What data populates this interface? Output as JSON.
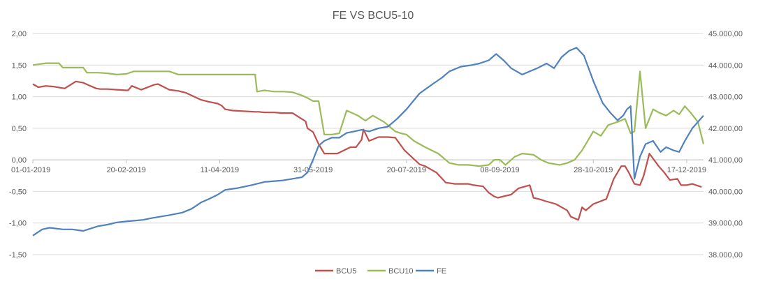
{
  "chart_data": {
    "type": "line",
    "title": "FE VS BCU5-10",
    "grid": true,
    "legend_position": "bottom",
    "x_ticks": [
      "01-01-2019",
      "20-02-2019",
      "11-04-2019",
      "31-05-2019",
      "20-07-2019",
      "08-09-2019",
      "28-10-2019",
      "17-12-2019"
    ],
    "y_left": {
      "range": [
        -1.5,
        2.0
      ],
      "ticks": [
        -1.5,
        -1.0,
        -0.5,
        0.0,
        0.5,
        1.0,
        1.5,
        2.0
      ],
      "tick_labels": [
        "-1,50",
        "-1,00",
        "-0,50",
        "0,00",
        "0,50",
        "1,00",
        "1,50",
        "2,00"
      ]
    },
    "y_right": {
      "range": [
        38000,
        45000
      ],
      "ticks": [
        38000,
        39000,
        40000,
        41000,
        42000,
        43000,
        44000,
        45000
      ],
      "tick_labels": [
        "38.000,00",
        "39.000,00",
        "40.000,00",
        "41.000,00",
        "42.000,00",
        "43.000,00",
        "44.000,00",
        "45.000,00"
      ]
    },
    "series": [
      {
        "name": "BCU5",
        "axis": "left",
        "color": "#c0504d",
        "x": [
          "01-01-2019",
          "04-01-2019",
          "08-01-2019",
          "12-01-2019",
          "18-01-2019",
          "24-01-2019",
          "28-01-2019",
          "31-01-2019",
          "04-02-2019",
          "06-02-2019",
          "10-02-2019",
          "15-02-2019",
          "20-02-2019",
          "21-02-2019",
          "23-02-2019",
          "28-02-2019",
          "01-03-2019",
          "07-03-2019",
          "09-03-2019",
          "15-03-2019",
          "20-03-2019",
          "24-03-2019",
          "01-04-2019",
          "05-04-2019",
          "10-04-2019",
          "12-04-2019",
          "14-04-2019",
          "18-04-2019",
          "30-04-2019",
          "02-05-2019",
          "05-05-2019",
          "10-05-2019",
          "15-05-2019",
          "20-05-2019",
          "27-05-2019",
          "28-05-2019",
          "31-05-2019",
          "03-06-2019",
          "06-06-2019",
          "13-06-2019",
          "20-06-2019",
          "23-06-2019",
          "26-06-2019",
          "27-06-2019",
          "30-06-2019",
          "05-07-2019",
          "10-07-2019",
          "14-07-2019",
          "19-07-2019",
          "27-07-2019",
          "30-07-2019",
          "05-08-2019",
          "10-08-2019",
          "15-08-2019",
          "22-08-2019",
          "25-08-2019",
          "30-08-2019",
          "02-09-2019",
          "05-09-2019",
          "07-09-2019",
          "11-09-2019",
          "14-09-2019",
          "18-09-2019",
          "24-09-2019",
          "26-09-2019",
          "30-09-2019",
          "02-10-2019",
          "08-10-2019",
          "14-10-2019",
          "16-10-2019",
          "20-10-2019",
          "22-10-2019",
          "24-10-2019",
          "28-10-2019",
          "04-11-2019",
          "08-11-2019",
          "12-11-2019",
          "14-11-2019",
          "16-11-2019",
          "19-11-2019",
          "22-11-2019",
          "24-11-2019",
          "27-11-2019",
          "02-12-2019",
          "05-12-2019",
          "08-12-2019",
          "12-12-2019",
          "14-12-2019",
          "17-12-2019",
          "20-12-2019",
          "22-12-2019",
          "25-12-2019"
        ],
        "values": [
          1.2,
          1.15,
          1.17,
          1.16,
          1.13,
          1.24,
          1.22,
          1.18,
          1.13,
          1.12,
          1.12,
          1.11,
          1.1,
          1.1,
          1.17,
          1.11,
          1.12,
          1.19,
          1.2,
          1.11,
          1.09,
          1.06,
          0.95,
          0.92,
          0.89,
          0.86,
          0.8,
          0.78,
          0.76,
          0.76,
          0.75,
          0.75,
          0.74,
          0.74,
          0.61,
          0.5,
          0.44,
          0.25,
          0.1,
          0.1,
          0.2,
          0.2,
          0.32,
          0.48,
          0.3,
          0.36,
          0.36,
          0.35,
          0.15,
          -0.07,
          -0.1,
          -0.2,
          -0.36,
          -0.38,
          -0.38,
          -0.4,
          -0.42,
          -0.52,
          -0.58,
          -0.6,
          -0.57,
          -0.55,
          -0.45,
          -0.4,
          -0.6,
          -0.63,
          -0.65,
          -0.7,
          -0.8,
          -0.9,
          -0.95,
          -0.75,
          -0.8,
          -0.7,
          -0.62,
          -0.3,
          -0.1,
          -0.1,
          -0.2,
          -0.38,
          -0.4,
          -0.25,
          0.1,
          -0.1,
          -0.2,
          -0.32,
          -0.3,
          -0.4,
          -0.4,
          -0.38,
          -0.4,
          -0.43
        ]
      },
      {
        "name": "BCU10",
        "axis": "left",
        "color": "#9bbb59",
        "x": [
          "01-01-2019",
          "08-01-2019",
          "15-01-2019",
          "17-01-2019",
          "28-01-2019",
          "30-01-2019",
          "05-02-2019",
          "10-02-2019",
          "15-02-2019",
          "20-02-2019",
          "24-02-2019",
          "05-03-2019",
          "15-03-2019",
          "20-03-2019",
          "01-04-2019",
          "11-04-2019",
          "20-04-2019",
          "30-04-2019",
          "01-05-2019",
          "05-05-2019",
          "10-05-2019",
          "15-05-2019",
          "20-05-2019",
          "25-05-2019",
          "28-05-2019",
          "31-05-2019",
          "03-06-2019",
          "06-06-2019",
          "10-06-2019",
          "14-06-2019",
          "18-06-2019",
          "24-06-2019",
          "28-06-2019",
          "02-07-2019",
          "08-07-2019",
          "14-07-2019",
          "17-07-2019",
          "20-07-2019",
          "24-07-2019",
          "30-07-2019",
          "06-08-2019",
          "12-08-2019",
          "17-08-2019",
          "22-08-2019",
          "28-08-2019",
          "02-09-2019",
          "05-09-2019",
          "08-09-2019",
          "11-09-2019",
          "16-09-2019",
          "20-09-2019",
          "26-09-2019",
          "30-09-2019",
          "04-10-2019",
          "10-10-2019",
          "14-10-2019",
          "18-10-2019",
          "22-10-2019",
          "25-10-2019",
          "28-10-2019",
          "01-11-2019",
          "05-11-2019",
          "10-11-2019",
          "14-11-2019",
          "17-11-2019",
          "19-11-2019",
          "22-11-2019",
          "25-11-2019",
          "29-11-2019",
          "02-12-2019",
          "06-12-2019",
          "10-12-2019",
          "13-12-2019",
          "16-12-2019",
          "19-12-2019",
          "23-12-2019",
          "26-12-2019"
        ],
        "values": [
          1.5,
          1.53,
          1.53,
          1.46,
          1.46,
          1.38,
          1.38,
          1.37,
          1.35,
          1.36,
          1.4,
          1.4,
          1.4,
          1.35,
          1.35,
          1.35,
          1.35,
          1.35,
          1.08,
          1.1,
          1.08,
          1.08,
          1.07,
          1.02,
          0.98,
          0.93,
          0.93,
          0.4,
          0.4,
          0.42,
          0.78,
          0.7,
          0.62,
          0.7,
          0.6,
          0.45,
          0.42,
          0.4,
          0.3,
          0.2,
          0.1,
          -0.05,
          -0.08,
          -0.08,
          -0.1,
          -0.08,
          0.0,
          0.0,
          -0.08,
          0.05,
          0.1,
          0.08,
          0.0,
          -0.05,
          -0.08,
          -0.05,
          0.0,
          0.15,
          0.3,
          0.45,
          0.38,
          0.55,
          0.6,
          0.65,
          0.42,
          0.45,
          1.4,
          0.5,
          0.8,
          0.75,
          0.7,
          0.78,
          0.72,
          0.85,
          0.75,
          0.6,
          0.25
        ]
      },
      {
        "name": "FE",
        "axis": "right",
        "color": "#4f81bd",
        "x": [
          "01-01-2019",
          "06-01-2019",
          "10-01-2019",
          "17-01-2019",
          "22-01-2019",
          "28-01-2019",
          "05-02-2019",
          "10-02-2019",
          "15-02-2019",
          "20-02-2019",
          "01-03-2019",
          "05-03-2019",
          "10-03-2019",
          "15-03-2019",
          "22-03-2019",
          "27-03-2019",
          "01-04-2019",
          "06-04-2019",
          "10-04-2019",
          "14-04-2019",
          "20-04-2019",
          "28-04-2019",
          "05-05-2019",
          "15-05-2019",
          "25-05-2019",
          "28-05-2019",
          "31-05-2019",
          "03-06-2019",
          "06-06-2019",
          "10-06-2019",
          "14-06-2019",
          "18-06-2019",
          "22-06-2019",
          "26-06-2019",
          "30-06-2019",
          "05-07-2019",
          "10-07-2019",
          "15-07-2019",
          "20-07-2019",
          "27-07-2019",
          "03-08-2019",
          "08-08-2019",
          "12-08-2019",
          "18-08-2019",
          "24-08-2019",
          "28-08-2019",
          "02-09-2019",
          "06-09-2019",
          "10-09-2019",
          "14-09-2019",
          "20-09-2019",
          "24-09-2019",
          "28-09-2019",
          "03-10-2019",
          "07-10-2019",
          "11-10-2019",
          "15-10-2019",
          "19-10-2019",
          "23-10-2019",
          "28-10-2019",
          "02-11-2019",
          "06-11-2019",
          "10-11-2019",
          "13-11-2019",
          "15-11-2019",
          "17-11-2019",
          "19-11-2019",
          "22-11-2019",
          "25-11-2019",
          "29-11-2019",
          "03-12-2019",
          "06-12-2019",
          "10-12-2019",
          "13-12-2019",
          "16-12-2019",
          "20-12-2019",
          "26-12-2019"
        ],
        "values": [
          38600,
          38800,
          38850,
          38800,
          38800,
          38750,
          38900,
          38950,
          39020,
          39050,
          39100,
          39150,
          39200,
          39250,
          39330,
          39450,
          39650,
          39780,
          39900,
          40050,
          40100,
          40200,
          40300,
          40350,
          40450,
          40600,
          41000,
          41450,
          41600,
          41700,
          41700,
          41850,
          41900,
          41950,
          41900,
          42000,
          42050,
          42300,
          42600,
          43100,
          43400,
          43600,
          43800,
          43950,
          44000,
          44050,
          44150,
          44350,
          44150,
          43900,
          43700,
          43800,
          43900,
          44050,
          43900,
          44250,
          44450,
          44550,
          44300,
          43500,
          42800,
          42500,
          42250,
          42400,
          42600,
          42700,
          40400,
          41100,
          41500,
          41600,
          41250,
          41400,
          41300,
          41250,
          41600,
          42000,
          42400
        ]
      }
    ]
  }
}
